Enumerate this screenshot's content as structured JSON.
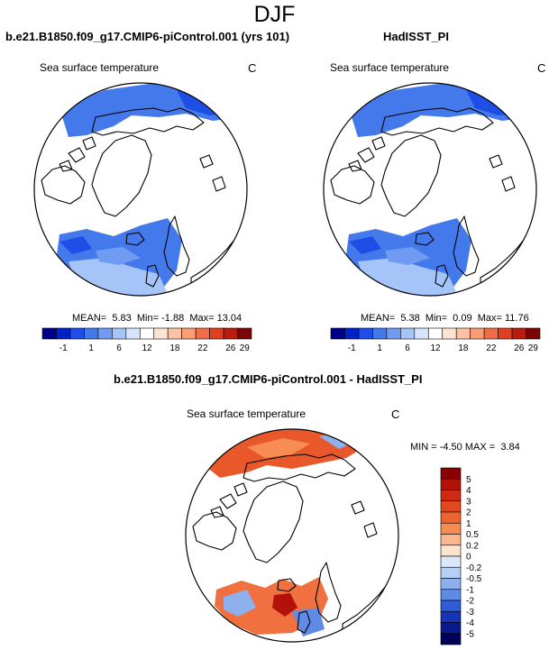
{
  "header": {
    "title": "DJF"
  },
  "chart_data": [
    {
      "type": "heatmap",
      "panel": "model",
      "title": "b.e21.B1850.f09_g17.CMIP6-piControl.001 (yrs 101)",
      "subtitle": "Sea surface temperature",
      "units": "C",
      "stats": {
        "mean_label": "MEAN=",
        "mean": "5.83",
        "min_label": "Min=",
        "min": "-1.88",
        "max_label": "Max=",
        "max": "13.04"
      },
      "colorbar": {
        "ticks": [
          "-1",
          "1",
          "6",
          "12",
          "18",
          "22",
          "26",
          "29"
        ],
        "colors": [
          "#00008b",
          "#0022c8",
          "#1e4ee6",
          "#4479ec",
          "#6f9cf2",
          "#a5c4f8",
          "#d6e6fb",
          "#ffffff",
          "#fde3d2",
          "#fbc2a3",
          "#f89d75",
          "#f26c45",
          "#e0401e",
          "#b81c0c",
          "#7a0606"
        ]
      }
    },
    {
      "type": "heatmap",
      "panel": "observations",
      "title": "HadISST_PI",
      "subtitle": "Sea surface temperature",
      "units": "C",
      "stats": {
        "mean_label": "MEAN=",
        "mean": "5.38",
        "min_label": "Min=",
        "min": "0.09",
        "max_label": "Max=",
        "max": "11.76"
      },
      "colorbar": {
        "ticks": [
          "-1",
          "1",
          "6",
          "12",
          "18",
          "22",
          "26",
          "29"
        ],
        "colors": [
          "#00008b",
          "#0022c8",
          "#1e4ee6",
          "#4479ec",
          "#6f9cf2",
          "#a5c4f8",
          "#d6e6fb",
          "#ffffff",
          "#fde3d2",
          "#fbc2a3",
          "#f89d75",
          "#f26c45",
          "#e0401e",
          "#b81c0c",
          "#7a0606"
        ]
      }
    },
    {
      "type": "heatmap",
      "panel": "difference",
      "title": "b.e21.B1850.f09_g17.CMIP6-piControl.001 - HadISST_PI",
      "subtitle": "Sea surface temperature",
      "units": "C",
      "stats": {
        "min_label": "MIN =",
        "min": "-4.50",
        "max_label": "MAX =",
        "max": "3.84"
      },
      "colorbar": {
        "ticks": [
          "5",
          "4",
          "3",
          "2",
          "1",
          "0.5",
          "0.2",
          "0",
          "-0.2",
          "-0.5",
          "-1",
          "-2",
          "-3",
          "-4",
          "-5"
        ],
        "colors": [
          "#8b0000",
          "#b3120a",
          "#d02a14",
          "#e4481f",
          "#f0652d",
          "#f78c55",
          "#fbb890",
          "#fde4cf",
          "#dbe8fa",
          "#b8cff5",
          "#8eb1ee",
          "#5f8be5",
          "#2f5cd8",
          "#1634b8",
          "#0a1a8c",
          "#00005a"
        ]
      }
    }
  ]
}
